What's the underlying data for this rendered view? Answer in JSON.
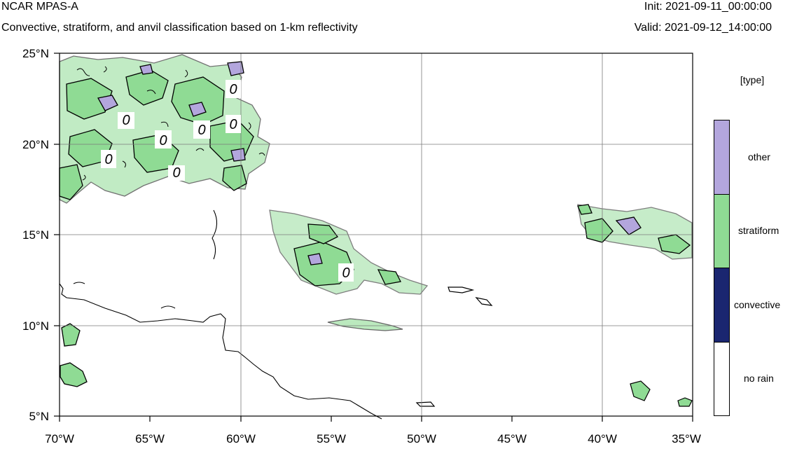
{
  "header": {
    "model": "NCAR MPAS-A",
    "description": "Convective, stratiform, and anvil classification based on 1-km reflectivity",
    "init_time": "Init: 2021-09-11_00:00:00",
    "valid_time": "Valid: 2021-09-12_14:00:00"
  },
  "map": {
    "lon_labels": [
      "70°W",
      "65°W",
      "60°W",
      "55°W",
      "50°W",
      "45°W",
      "40°W",
      "35°W"
    ],
    "lat_labels": [
      "25°N",
      "20°N",
      "15°N",
      "10°N",
      "5°N"
    ],
    "lon_range": [
      -70,
      -35
    ],
    "lat_range": [
      5,
      25
    ],
    "contour_labels": [
      "0",
      "0",
      "0",
      "0",
      "0",
      "0",
      "0",
      "0"
    ],
    "grid": true
  },
  "legend": {
    "title": "[type]",
    "items": [
      {
        "label": "other",
        "color": "#b3a6dd"
      },
      {
        "label": "stratiform",
        "color": "#8fdb94"
      },
      {
        "label": "convective",
        "color": "#1a2670"
      },
      {
        "label": "no rain",
        "color": "#ffffff"
      }
    ]
  },
  "colors": {
    "stratiform": "#8fdb94",
    "other": "#b3a6dd",
    "convective": "#1a2670",
    "coast": "#000000",
    "grid": "#7a7a7a"
  }
}
